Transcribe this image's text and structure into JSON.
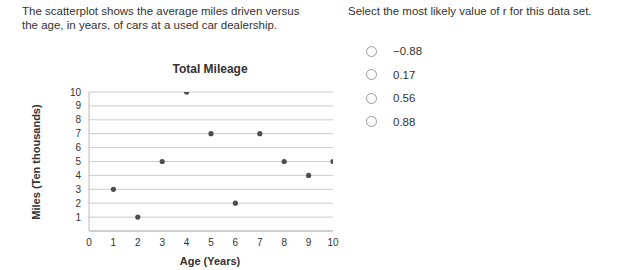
{
  "question": {
    "prompt": [
      "The scatterplot shows the average miles driven versus",
      "the age, in years, of cars at a used car dealership."
    ],
    "instruction": "Select the most likely value of r for this data set.",
    "options": [
      "−0.88",
      "0.17",
      "0.56",
      "0.88"
    ]
  },
  "chart_data": {
    "type": "scatter",
    "title": "Total Mileage",
    "x_label": "Age (Years)",
    "y_label": "Miles (Ten thousands)",
    "x": [
      1,
      2,
      3,
      4,
      5,
      6,
      7,
      8,
      9,
      10
    ],
    "values": [
      3,
      1,
      5,
      10,
      7,
      2,
      7,
      5,
      4,
      5
    ],
    "xlim": [
      0,
      10
    ],
    "ylim": [
      0,
      10
    ],
    "xticks": [
      0,
      1,
      2,
      3,
      4,
      5,
      6,
      7,
      8,
      9,
      10
    ],
    "yticks": [
      1,
      2,
      3,
      4,
      5,
      6,
      7,
      8,
      9,
      10
    ],
    "grid": true,
    "color": "#4d4d4d",
    "marker": "circle"
  }
}
